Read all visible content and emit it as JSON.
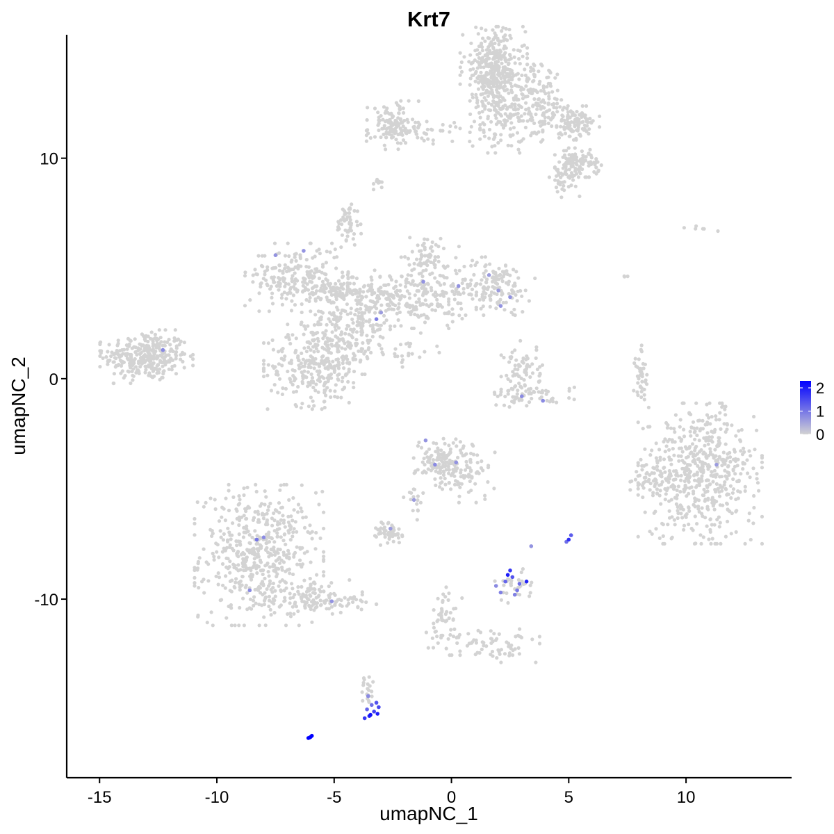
{
  "chart_data": {
    "type": "scatter",
    "title": "Krt7",
    "xlabel": "umapNC_1",
    "ylabel": "umapNC_2",
    "xlim": [
      -16.4,
      14.5
    ],
    "ylim": [
      -18.1,
      15.6
    ],
    "xticks": [
      -15,
      -10,
      -5,
      0,
      5,
      10
    ],
    "xtick_labels": [
      "-15",
      "-10",
      "-5",
      "0",
      "5",
      "10"
    ],
    "yticks": [
      -10,
      0,
      10
    ],
    "ytick_labels": [
      "-10",
      "0",
      "10"
    ],
    "grid": false,
    "legend_position": "right",
    "colors": {
      "low": "#d3d3d3",
      "high": "#0000ff",
      "axis": "#000000"
    },
    "color_scale": {
      "variable": "expression",
      "min": 0,
      "max": 2.3,
      "ticks": [
        0,
        1,
        2
      ],
      "tick_labels": [
        "0",
        "1",
        "2"
      ]
    },
    "clusters": [
      {
        "cx": -13.0,
        "cy": 1.0,
        "sx": 0.9,
        "sy": 0.55,
        "n": 320
      },
      {
        "cx": -8.2,
        "cy": -8.0,
        "sx": 1.25,
        "sy": 1.45,
        "n": 520
      },
      {
        "cx": -6.0,
        "cy": -9.9,
        "sx": 1.0,
        "sy": 0.35,
        "n": 110
      },
      {
        "cx": -4.3,
        "cy": -10.2,
        "sx": 0.5,
        "sy": 0.15,
        "n": 20
      },
      {
        "cx": -5.8,
        "cy": 0.6,
        "sx": 1.0,
        "sy": 0.9,
        "n": 280
      },
      {
        "cx": -4.4,
        "cy": 2.4,
        "sx": 0.9,
        "sy": 1.0,
        "n": 200
      },
      {
        "cx": -6.6,
        "cy": 4.6,
        "sx": 1.0,
        "sy": 0.7,
        "n": 210
      },
      {
        "cx": -4.6,
        "cy": 4.0,
        "sx": 0.9,
        "sy": 0.25,
        "n": 90
      },
      {
        "cx": -1.8,
        "cy": 3.6,
        "sx": 1.3,
        "sy": 0.6,
        "n": 240
      },
      {
        "cx": -1.0,
        "cy": 5.3,
        "sx": 0.6,
        "sy": 0.6,
        "n": 90
      },
      {
        "cx": 1.8,
        "cy": 4.2,
        "sx": 0.8,
        "sy": 0.6,
        "n": 140
      },
      {
        "cx": -4.4,
        "cy": 7.0,
        "sx": 0.25,
        "sy": 0.5,
        "n": 50
      },
      {
        "cx": -2.5,
        "cy": 1.3,
        "sx": 0.9,
        "sy": 0.35,
        "n": 35
      },
      {
        "cx": -2.5,
        "cy": 11.5,
        "sx": 0.5,
        "sy": 0.5,
        "n": 110
      },
      {
        "cx": -1.2,
        "cy": 11.2,
        "sx": 1.1,
        "sy": 0.25,
        "n": 60
      },
      {
        "cx": 1.8,
        "cy": 14.1,
        "sx": 0.65,
        "sy": 0.85,
        "n": 340
      },
      {
        "cx": 2.0,
        "cy": 12.0,
        "sx": 0.55,
        "sy": 0.8,
        "n": 130
      },
      {
        "cx": 3.6,
        "cy": 12.5,
        "sx": 0.6,
        "sy": 0.8,
        "n": 160
      },
      {
        "cx": 5.1,
        "cy": 11.6,
        "sx": 0.55,
        "sy": 0.35,
        "n": 120
      },
      {
        "cx": 5.4,
        "cy": 9.8,
        "sx": 0.45,
        "sy": 0.3,
        "n": 100
      },
      {
        "cx": 4.8,
        "cy": 9.0,
        "sx": 0.3,
        "sy": 0.35,
        "n": 40
      },
      {
        "cx": -3.1,
        "cy": 8.9,
        "sx": 0.1,
        "sy": 0.2,
        "n": 10
      },
      {
        "cx": -0.4,
        "cy": -3.8,
        "sx": 0.55,
        "sy": 0.55,
        "n": 140
      },
      {
        "cx": 0.9,
        "cy": -4.3,
        "sx": 0.45,
        "sy": 0.6,
        "n": 50
      },
      {
        "cx": -1.6,
        "cy": -5.5,
        "sx": 0.2,
        "sy": 0.5,
        "n": 15
      },
      {
        "cx": -2.6,
        "cy": -7.0,
        "sx": 0.3,
        "sy": 0.25,
        "n": 50
      },
      {
        "cx": 3.0,
        "cy": 0.4,
        "sx": 0.4,
        "sy": 0.6,
        "n": 70
      },
      {
        "cx": 3.4,
        "cy": -0.8,
        "sx": 0.9,
        "sy": 0.25,
        "n": 60
      },
      {
        "cx": 8.1,
        "cy": 0.2,
        "sx": 0.15,
        "sy": 0.6,
        "n": 40
      },
      {
        "cx": 10.6,
        "cy": -4.3,
        "sx": 1.2,
        "sy": 1.45,
        "n": 560
      },
      {
        "cx": 8.5,
        "cy": -4.5,
        "sx": 0.4,
        "sy": 0.4,
        "n": 40
      },
      {
        "cx": -0.3,
        "cy": -11.0,
        "sx": 0.35,
        "sy": 0.7,
        "n": 60
      },
      {
        "cx": 2.0,
        "cy": -12.1,
        "sx": 0.8,
        "sy": 0.35,
        "n": 60
      },
      {
        "cx": -3.6,
        "cy": -14.1,
        "sx": 0.12,
        "sy": 0.35,
        "n": 20
      },
      {
        "cx": 2.6,
        "cy": -9.4,
        "sx": 0.45,
        "sy": 0.35,
        "n": 30
      },
      {
        "cx": 10.3,
        "cy": 6.8,
        "sx": 0.5,
        "sy": 0.15,
        "n": 6
      },
      {
        "cx": 7.5,
        "cy": 4.7,
        "sx": 0.08,
        "sy": 0.12,
        "n": 3
      }
    ],
    "expressed_points": [
      {
        "x": -6.1,
        "y": -16.3,
        "v": 2.3
      },
      {
        "x": -6.0,
        "y": -16.25,
        "v": 2.3
      },
      {
        "x": -5.95,
        "y": -16.2,
        "v": 2.3
      },
      {
        "x": -6.05,
        "y": -16.28,
        "v": 2.2
      },
      {
        "x": -3.5,
        "y": -15.3,
        "v": 1.9
      },
      {
        "x": -3.3,
        "y": -15.1,
        "v": 1.6
      },
      {
        "x": -3.2,
        "y": -14.7,
        "v": 1.4
      },
      {
        "x": -3.6,
        "y": -15.0,
        "v": 1.2
      },
      {
        "x": -3.15,
        "y": -15.2,
        "v": 2.0
      },
      {
        "x": -3.7,
        "y": -15.4,
        "v": 1.7
      },
      {
        "x": -3.4,
        "y": -14.8,
        "v": 1.1
      },
      {
        "x": -3.55,
        "y": -14.4,
        "v": 0.8
      },
      {
        "x": -3.1,
        "y": -14.9,
        "v": 1.5
      },
      {
        "x": -3.45,
        "y": -15.25,
        "v": 2.1
      },
      {
        "x": 2.5,
        "y": -8.7,
        "v": 1.7
      },
      {
        "x": 2.3,
        "y": -9.2,
        "v": 1.2
      },
      {
        "x": 2.8,
        "y": -9.6,
        "v": 1.0
      },
      {
        "x": 3.2,
        "y": -9.2,
        "v": 1.9
      },
      {
        "x": 2.1,
        "y": -9.7,
        "v": 0.9
      },
      {
        "x": 2.6,
        "y": -9.0,
        "v": 1.4
      },
      {
        "x": 1.9,
        "y": -9.4,
        "v": 0.8
      },
      {
        "x": 2.9,
        "y": -9.3,
        "v": 1.1
      },
      {
        "x": 2.4,
        "y": -8.9,
        "v": 2.0
      },
      {
        "x": 2.7,
        "y": -9.8,
        "v": 0.9
      },
      {
        "x": 5.0,
        "y": -7.3,
        "v": 1.8
      },
      {
        "x": 5.1,
        "y": -7.1,
        "v": 1.3
      },
      {
        "x": 4.9,
        "y": -7.4,
        "v": 1.1
      },
      {
        "x": 3.4,
        "y": -7.6,
        "v": 0.7
      },
      {
        "x": -12.3,
        "y": 1.3,
        "v": 0.8
      },
      {
        "x": -7.5,
        "y": 5.6,
        "v": 0.7
      },
      {
        "x": -6.3,
        "y": 5.8,
        "v": 0.7
      },
      {
        "x": -3.2,
        "y": 2.7,
        "v": 0.9
      },
      {
        "x": -3.0,
        "y": 3.0,
        "v": 0.6
      },
      {
        "x": -1.2,
        "y": 4.4,
        "v": 0.7
      },
      {
        "x": 0.3,
        "y": 4.2,
        "v": 0.7
      },
      {
        "x": 2.0,
        "y": 4.0,
        "v": 0.6
      },
      {
        "x": 2.5,
        "y": 3.7,
        "v": 0.7
      },
      {
        "x": 1.6,
        "y": 4.7,
        "v": 0.6
      },
      {
        "x": 2.1,
        "y": 3.3,
        "v": 0.7
      },
      {
        "x": -8.3,
        "y": -7.3,
        "v": 1.0
      },
      {
        "x": -8.0,
        "y": -7.2,
        "v": 0.8
      },
      {
        "x": -8.6,
        "y": -9.6,
        "v": 0.8
      },
      {
        "x": -5.1,
        "y": -10.1,
        "v": 0.7
      },
      {
        "x": -1.1,
        "y": -2.8,
        "v": 0.7
      },
      {
        "x": -0.7,
        "y": -3.9,
        "v": 0.8
      },
      {
        "x": 0.2,
        "y": -3.8,
        "v": 0.7
      },
      {
        "x": -1.6,
        "y": -5.5,
        "v": 0.6
      },
      {
        "x": 3.0,
        "y": -0.8,
        "v": 0.8
      },
      {
        "x": 3.9,
        "y": -1.0,
        "v": 0.8
      },
      {
        "x": 11.3,
        "y": -3.9,
        "v": 0.6
      },
      {
        "x": -2.6,
        "y": -6.8,
        "v": 0.6
      }
    ]
  }
}
